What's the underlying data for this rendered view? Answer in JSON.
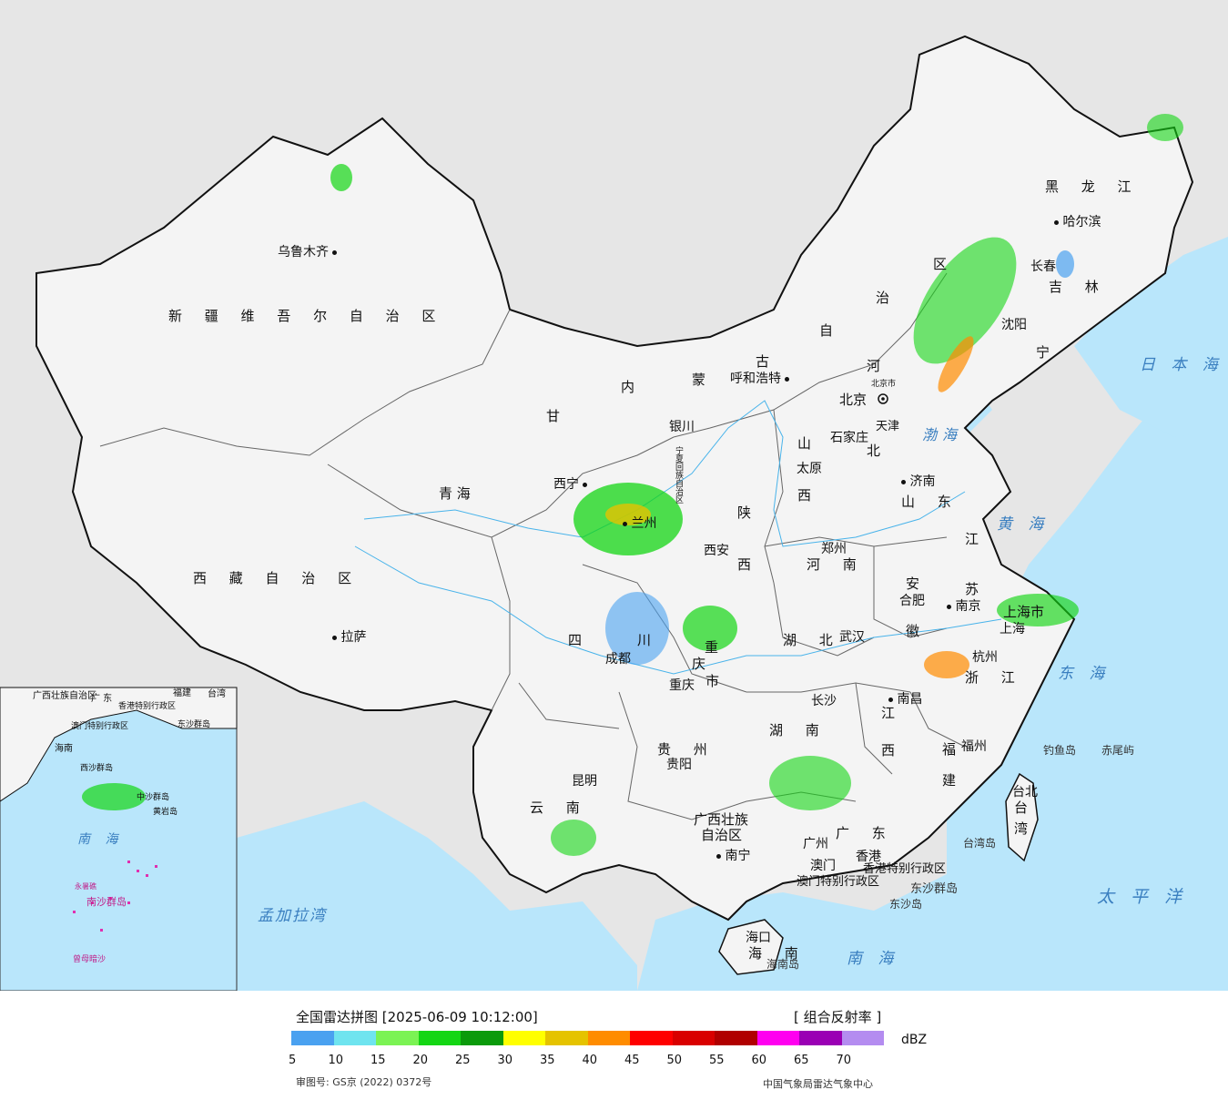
{
  "legend": {
    "title": "全国雷达拼图 [2025-06-09 10:12:00]",
    "product": "[ 组合反射率 ]",
    "unit": "dBZ",
    "ticks": [
      "5",
      "10",
      "15",
      "20",
      "25",
      "30",
      "35",
      "40",
      "45",
      "50",
      "55",
      "60",
      "65",
      "70"
    ],
    "colors": [
      "#4aa1f0",
      "#6fe4ef",
      "#7bf354",
      "#14d614",
      "#0b9a0b",
      "#ffff00",
      "#e5c300",
      "#ff8c00",
      "#ff0000",
      "#d90000",
      "#b00000",
      "#ff00f0",
      "#9a00b4",
      "#b48cf0"
    ],
    "review_no": "审图号: GS京 (2022) 0372号",
    "source": "中国气象局雷达气象中心"
  },
  "map": {
    "colors": {
      "land": "#f4f4f4",
      "sea": "#b9e6fb",
      "outside": "#e6e6e6",
      "border": "#111111",
      "radar_light": "#6fe4ef",
      "radar_green": "#14d614"
    },
    "provinces": {
      "xinjiang": "新 疆 维 吾 尔 自 治 区",
      "xizang": "西 藏 自 治 区",
      "qinghai": "青    海",
      "gansu": "甘",
      "neimenggu_1": "内",
      "neimenggu_2": "蒙",
      "neimenggu_3": "古",
      "neimenggu_4": "自",
      "neimenggu_5": "治",
      "neimenggu_6": "区",
      "heilongjiang": "黑 龙 江",
      "jilin": "吉 林",
      "liaoning": "宁",
      "hebei_1": "河",
      "hebei_2": "北",
      "shanxi_1": "山",
      "shanxi_2": "西",
      "shandong": "山 东",
      "shaanxi_1": "陕",
      "shaanxi_2": "西",
      "henan": "河 南",
      "jiangsu_1": "江",
      "jiangsu_2": "苏",
      "anhui_1": "安",
      "anhui_2": "徽",
      "hubei": "湖 北",
      "sichuan_1": "四",
      "sichuan_2": "川",
      "chongqing_1": "重",
      "chongqing_2": "庆",
      "chongqing_3": "市",
      "zhejiang": "浙 江",
      "jiangxi_1": "江",
      "jiangxi_2": "西",
      "hunan": "湖 南",
      "guizhou": "贵 州",
      "fujian_1": "福",
      "fujian_2": "建",
      "yunnan": "云 南",
      "guangxi_1": "广西壮族",
      "guangxi_2": "自治区",
      "guangdong": "广 东",
      "hainan": "海 南",
      "taiwan_1": "台",
      "taiwan_2": "湾",
      "ningxia": "宁夏回族自治区",
      "shanghai": "上海市",
      "tianjin": "天津",
      "beijing_small": "北京市",
      "hk": "香港特别行政区",
      "macao": "澳门特别行政区"
    },
    "cities": {
      "urumqi": "乌鲁木齐",
      "lhasa": "拉萨",
      "xining": "西宁",
      "lanzhou": "兰州",
      "yinchuan": "银川",
      "hohhot": "呼和浩特",
      "beijing": "北京",
      "shijiazhuang": "石家庄",
      "taiyuan": "太原",
      "jinan": "济南",
      "xian": "西安",
      "zhengzhou": "郑州",
      "hefei": "合肥",
      "nanjing": "南京",
      "shanghai": "上海",
      "wuhan": "武汉",
      "chengdu": "成都",
      "chongqing": "重庆",
      "hangzhou": "杭州",
      "nanchang": "南昌",
      "changsha": "长沙",
      "guiyang": "贵阳",
      "fuzhou": "福州",
      "kunming": "昆明",
      "nanning": "南宁",
      "guangzhou": "广州",
      "macau": "澳门",
      "hongkong": "香港",
      "haikou": "海口",
      "taibei": "台北",
      "shenyang": "沈阳",
      "changchun": "长春",
      "harbin": "哈尔滨"
    },
    "islands": {
      "hainandao": "海南岛",
      "taiwandao": "台湾岛",
      "dongsha_1": "东沙群岛",
      "dongsha_2": "东沙岛",
      "diaoyu": "钓鱼岛",
      "chiwei": "赤尾屿"
    },
    "seas": {
      "bohai": "渤海",
      "huanghai": "黄 海",
      "donghai": "东 海",
      "nanhai": "南 海",
      "taipingyang": "太 平 洋",
      "ribenhai": "日 本 海",
      "mengjiala": "孟加拉湾"
    },
    "inset": {
      "nanhai": "南 海",
      "guangxi": "广西壮族自治区",
      "guangdong": "广 东",
      "fujian": "福建",
      "taiwan": "台湾",
      "hk_macao": "香港特别行政区",
      "macao": "澳门特别行政区",
      "dongsha": "东沙群岛",
      "hainan": "海南",
      "xisha": "西沙群岛",
      "zhongsha": "中沙群岛",
      "huangyan": "黄岩岛",
      "nansha": "南沙群岛",
      "zengmu": "曾母暗沙",
      "yongshu": "永暑礁"
    }
  }
}
